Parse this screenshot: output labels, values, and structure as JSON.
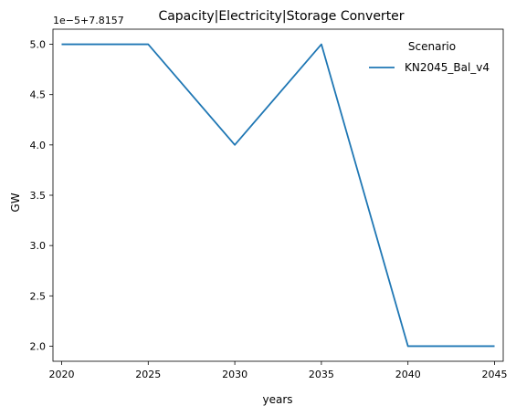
{
  "chart_data": {
    "type": "line",
    "title": "Capacity|Electricity|Storage Converter",
    "xlabel": "years",
    "ylabel": "GW",
    "y_offset_label": "1e−5+7.8157",
    "x_ticks": [
      "2020",
      "2025",
      "2030",
      "2035",
      "2040",
      "2045"
    ],
    "y_ticks": [
      "2.0",
      "2.5",
      "3.0",
      "3.5",
      "4.0",
      "4.5",
      "5.0"
    ],
    "xlim": [
      2019.5,
      2045.5
    ],
    "ylim": [
      1.85,
      5.15
    ],
    "legend": {
      "title": "Scenario",
      "position": "top-right"
    },
    "series": [
      {
        "name": "KN2045_Bal_v4",
        "color": "#1f77b4",
        "x": [
          2020,
          2025,
          2030,
          2035,
          2040,
          2045
        ],
        "y": [
          5.0,
          5.0,
          4.0,
          5.0,
          2.0,
          2.0
        ]
      }
    ]
  }
}
